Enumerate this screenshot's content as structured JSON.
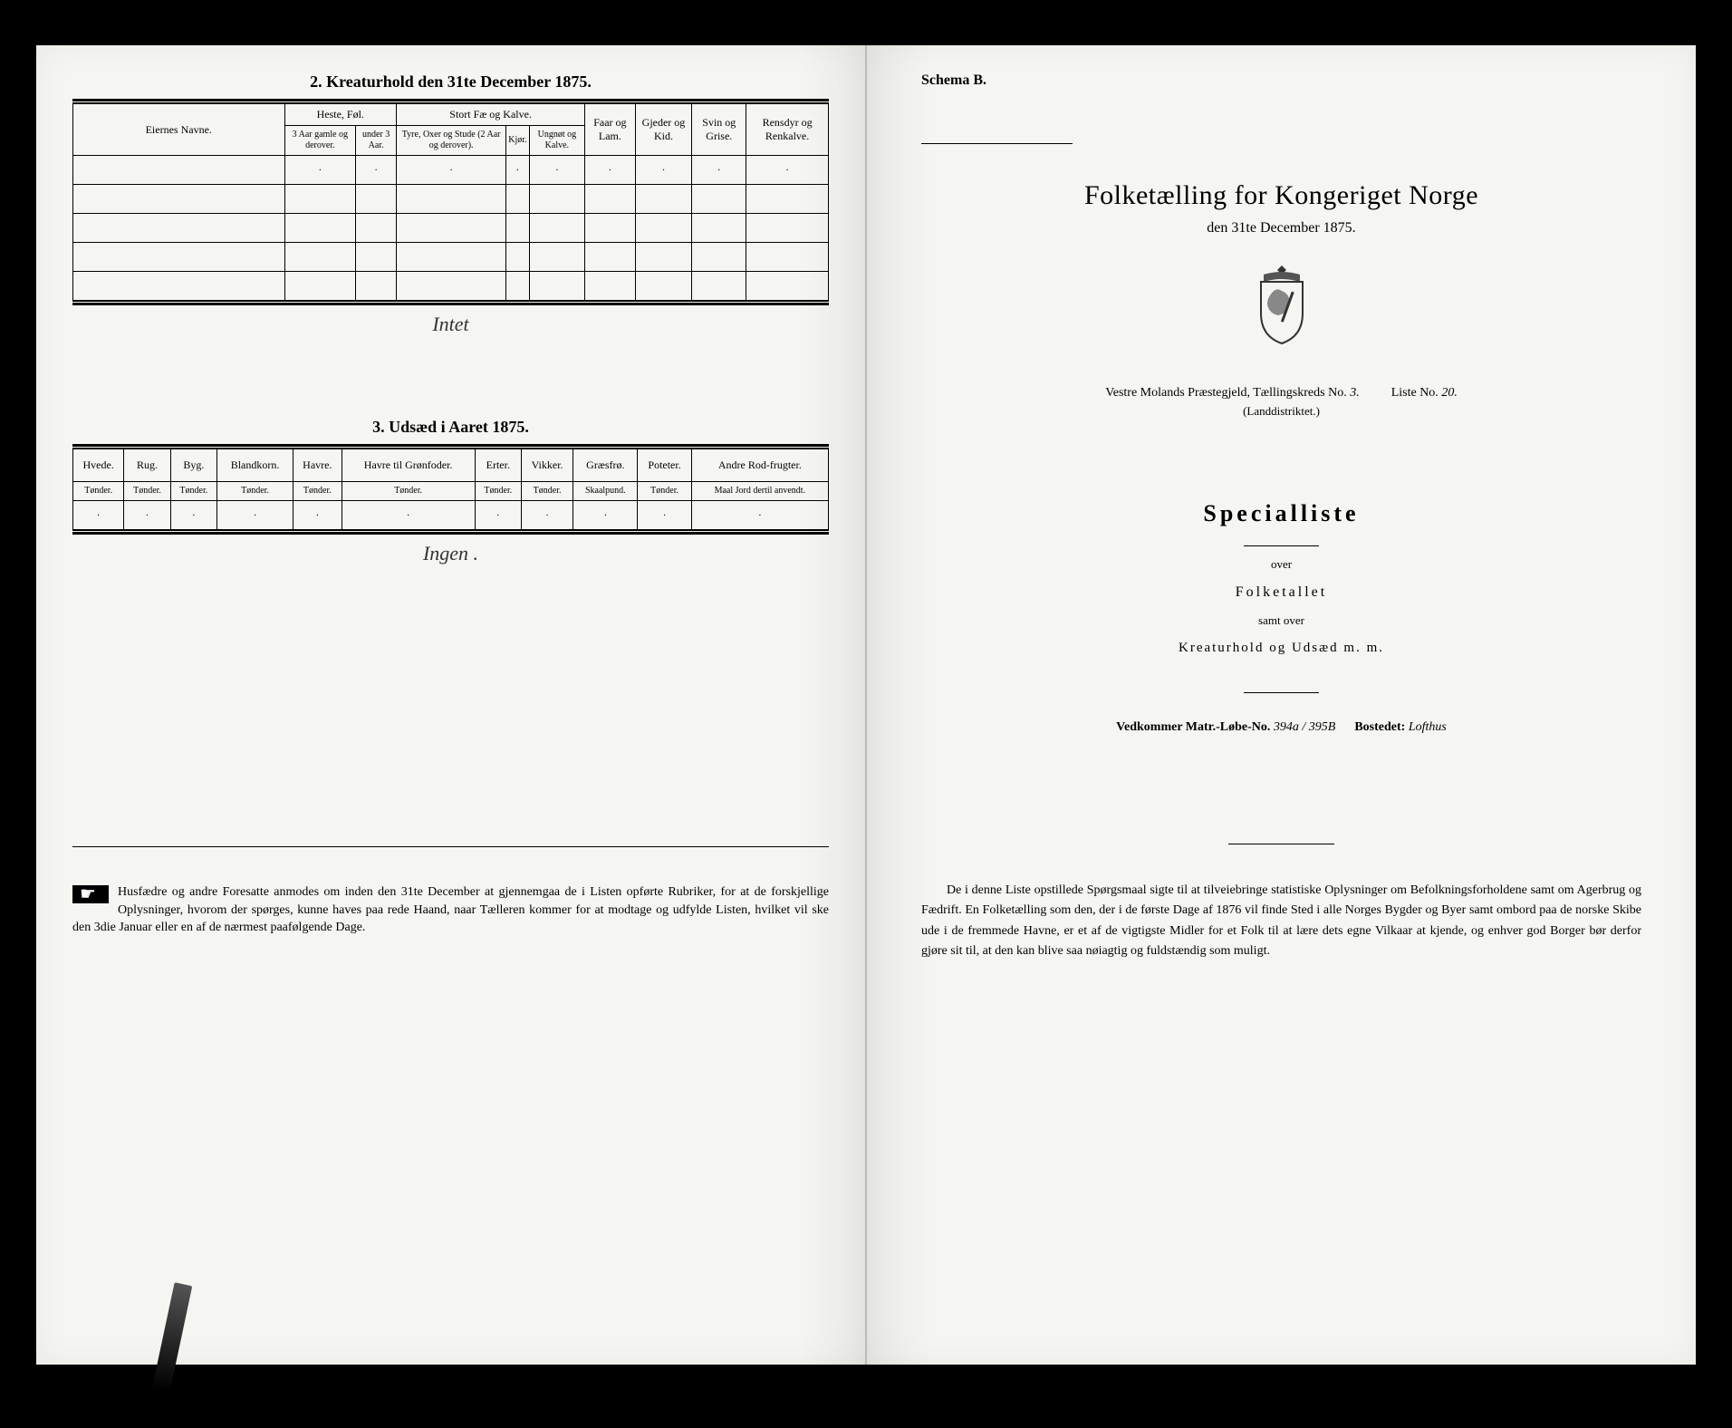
{
  "left": {
    "section2_title": "2.  Kreaturhold den 31te December 1875.",
    "table2": {
      "eiernes": "Eiernes Navne.",
      "heste_group": "Heste, Føl.",
      "stort_group": "Stort Fæ og Kalve.",
      "faar": "Faar og Lam.",
      "gjeder": "Gjeder og Kid.",
      "svin": "Svin og Grise.",
      "rensdyr": "Rensdyr og Renkalve.",
      "heste_a": "3 Aar gamle og derover.",
      "heste_b": "under 3 Aar.",
      "stort_a": "Tyre, Oxer og Stude (2 Aar og derover).",
      "stort_b": "Kjør.",
      "stort_c": "Ungnøt og Kalve."
    },
    "signature2": "Intet",
    "section3_title": "3.  Udsæd i Aaret 1875.",
    "table3": {
      "cols": [
        {
          "h": "Hvede.",
          "s": "Tønder."
        },
        {
          "h": "Rug.",
          "s": "Tønder."
        },
        {
          "h": "Byg.",
          "s": "Tønder."
        },
        {
          "h": "Blandkorn.",
          "s": "Tønder."
        },
        {
          "h": "Havre.",
          "s": "Tønder."
        },
        {
          "h": "Havre til Grønfoder.",
          "s": "Tønder."
        },
        {
          "h": "Erter.",
          "s": "Tønder."
        },
        {
          "h": "Vikker.",
          "s": "Tønder."
        },
        {
          "h": "Græsfrø.",
          "s": "Skaalpund."
        },
        {
          "h": "Poteter.",
          "s": "Tønder."
        },
        {
          "h": "Andre Rod-frugter.",
          "s": "Maal Jord dertil anvendt."
        }
      ]
    },
    "signature3": "Ingen .",
    "footnote": "Husfædre og andre Foresatte anmodes om inden den 31te December at gjennemgaa de i Listen opførte Rubriker, for at de forskjellige Oplysninger, hvorom der spørges, kunne haves paa rede Haand, naar Tælleren kommer for at modtage og udfylde Listen, hvilket vil ske den 3die Januar eller en af de nærmest paafølgende Dage."
  },
  "right": {
    "schema": "Schema B.",
    "main_title": "Folketælling for Kongeriget Norge",
    "sub_title": "den 31te December 1875.",
    "district_prefix": "Vestre Molands Præstegjeld, Tællingskreds No.",
    "district_no": "3.",
    "liste_label": "Liste No.",
    "liste_no": "20.",
    "district_sub": "(Landdistriktet.)",
    "specialliste": "Specialliste",
    "over": "over",
    "folketallet": "Folketallet",
    "samt_over": "samt over",
    "kreatur": "Kreaturhold og Udsæd m. m.",
    "vedkommer_label": "Vedkommer Matr.-Løbe-No.",
    "vedkommer_val": "394a / 395B",
    "bostedet_label": "Bostedet:",
    "bostedet_val": "Lofthus",
    "footnote": "De i denne Liste opstillede Spørgsmaal sigte til at tilveiebringe statistiske Oplysninger om Befolkningsforholdene samt om Agerbrug og Fædrift.  En Folketælling som den, der i de første Dage af 1876 vil finde Sted i alle Norges Bygder og Byer samt ombord paa de norske Skibe ude i de fremmede Havne, er et af de vigtigste Midler for et Folk til at lære dets egne Vilkaar at kjende, og enhver god Borger bør derfor gjøre sit til, at den kan blive saa nøiagtig og fuldstændig som muligt."
  }
}
